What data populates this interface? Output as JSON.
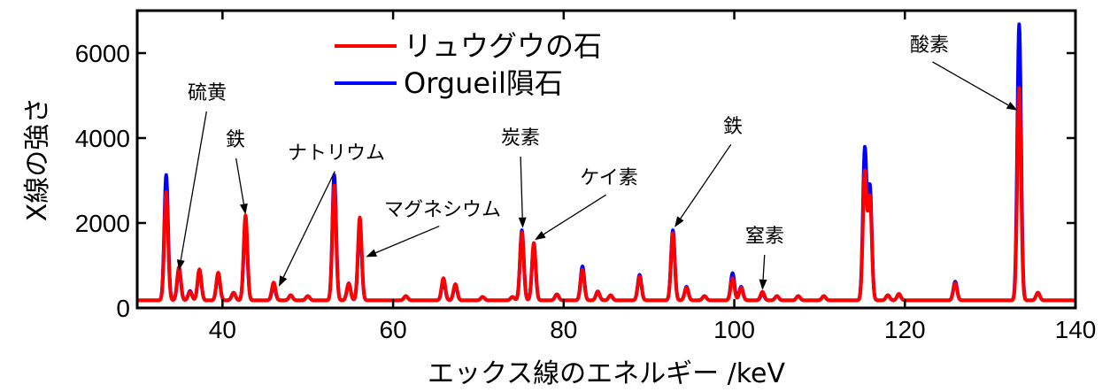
{
  "chart_data": {
    "type": "line",
    "xlabel": "エックス線のエネルギー /keV",
    "ylabel": "X線の強さ",
    "xlim": [
      30,
      140
    ],
    "ylim": [
      0,
      7000
    ],
    "xticks": [
      40,
      60,
      80,
      100,
      120,
      140
    ],
    "yticks": [
      0,
      2000,
      4000,
      6000
    ],
    "legend_position": "top-center",
    "baseline": 180,
    "series": [
      {
        "name": "リュウグウの石",
        "color": "#ff0000",
        "peaks": [
          [
            33.4,
            2550
          ],
          [
            34.9,
            780
          ],
          [
            36.2,
            200
          ],
          [
            37.3,
            730
          ],
          [
            39.5,
            650
          ],
          [
            41.3,
            180
          ],
          [
            42.7,
            2000
          ],
          [
            46.0,
            420
          ],
          [
            48.0,
            120
          ],
          [
            50.0,
            100
          ],
          [
            53.1,
            2700
          ],
          [
            54.8,
            400
          ],
          [
            56.1,
            1950
          ],
          [
            61.5,
            100
          ],
          [
            65.9,
            520
          ],
          [
            67.3,
            380
          ],
          [
            70.5,
            80
          ],
          [
            74.0,
            80
          ],
          [
            75.1,
            1600
          ],
          [
            76.5,
            1350
          ],
          [
            79.2,
            140
          ],
          [
            82.2,
            720
          ],
          [
            84.0,
            200
          ],
          [
            85.5,
            120
          ],
          [
            88.9,
            560
          ],
          [
            92.8,
            1580
          ],
          [
            94.4,
            300
          ],
          [
            96.5,
            100
          ],
          [
            99.8,
            520
          ],
          [
            100.8,
            300
          ],
          [
            103.3,
            200
          ],
          [
            105.0,
            100
          ],
          [
            107.5,
            100
          ],
          [
            110.5,
            100
          ],
          [
            115.3,
            3000
          ],
          [
            115.9,
            2400
          ],
          [
            118.0,
            120
          ],
          [
            119.3,
            150
          ],
          [
            125.9,
            400
          ],
          [
            133.4,
            5000
          ],
          [
            135.6,
            180
          ]
        ]
      },
      {
        "name": "Orgueil隕石",
        "color": "#0000ff",
        "peaks": [
          [
            33.4,
            2950
          ],
          [
            34.9,
            720
          ],
          [
            36.2,
            220
          ],
          [
            37.3,
            720
          ],
          [
            39.5,
            640
          ],
          [
            41.3,
            180
          ],
          [
            42.7,
            1850
          ],
          [
            46.0,
            330
          ],
          [
            48.0,
            120
          ],
          [
            50.0,
            100
          ],
          [
            53.1,
            2950
          ],
          [
            54.8,
            400
          ],
          [
            56.1,
            1800
          ],
          [
            61.5,
            100
          ],
          [
            65.9,
            450
          ],
          [
            67.3,
            350
          ],
          [
            70.5,
            80
          ],
          [
            74.0,
            80
          ],
          [
            75.1,
            1650
          ],
          [
            76.5,
            1300
          ],
          [
            79.2,
            140
          ],
          [
            82.2,
            800
          ],
          [
            84.0,
            210
          ],
          [
            85.5,
            120
          ],
          [
            88.9,
            600
          ],
          [
            92.8,
            1650
          ],
          [
            94.4,
            320
          ],
          [
            96.5,
            100
          ],
          [
            99.8,
            640
          ],
          [
            100.8,
            320
          ],
          [
            103.3,
            150
          ],
          [
            105.0,
            100
          ],
          [
            107.5,
            100
          ],
          [
            110.5,
            100
          ],
          [
            115.3,
            3550
          ],
          [
            115.9,
            2650
          ],
          [
            118.0,
            120
          ],
          [
            119.3,
            150
          ],
          [
            125.9,
            440
          ],
          [
            133.4,
            6500
          ],
          [
            135.6,
            180
          ]
        ]
      }
    ],
    "annotations": [
      {
        "label": "硫黄",
        "point": [
          34.9,
          880
        ]
      },
      {
        "label": "鉄",
        "point": [
          42.7,
          2200
        ]
      },
      {
        "label": "ナトリウム",
        "point": [
          46.6,
          500
        ]
      },
      {
        "label": "マグネシウム",
        "point": [
          56.8,
          1200
        ]
      },
      {
        "label": "炭素",
        "point": [
          75.2,
          1880
        ]
      },
      {
        "label": "ケイ素",
        "point": [
          76.6,
          1600
        ]
      },
      {
        "label": "鉄",
        "point": [
          93.0,
          1900
        ]
      },
      {
        "label": "窒素",
        "point": [
          103.3,
          420
        ]
      },
      {
        "label": "酸素",
        "point": [
          133.2,
          4650
        ]
      }
    ]
  }
}
